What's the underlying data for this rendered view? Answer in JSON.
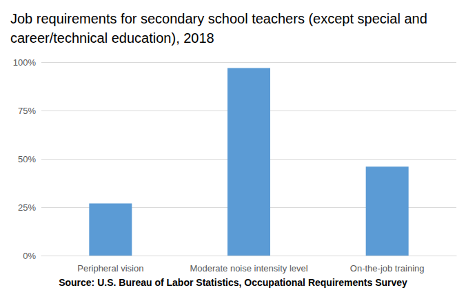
{
  "chart_data": {
    "type": "bar",
    "title": "Job requirements for secondary school teachers (except special and career/technical education), 2018",
    "categories": [
      "Peripheral vision",
      "Moderate noise intensity level",
      "On-the-job training"
    ],
    "values": [
      27,
      97,
      46
    ],
    "color": "#5b9bd5",
    "ylim": [
      0,
      100
    ],
    "yticks": [
      {
        "value": 0,
        "label": "0%"
      },
      {
        "value": 25,
        "label": "25%"
      },
      {
        "value": 50,
        "label": "50%"
      },
      {
        "value": 75,
        "label": "75%"
      },
      {
        "value": 100,
        "label": "100%"
      }
    ],
    "grid": true,
    "annotations": [
      "Source: U.S. Bureau of Labor Statistics, Occupational Requirements Survey"
    ]
  }
}
